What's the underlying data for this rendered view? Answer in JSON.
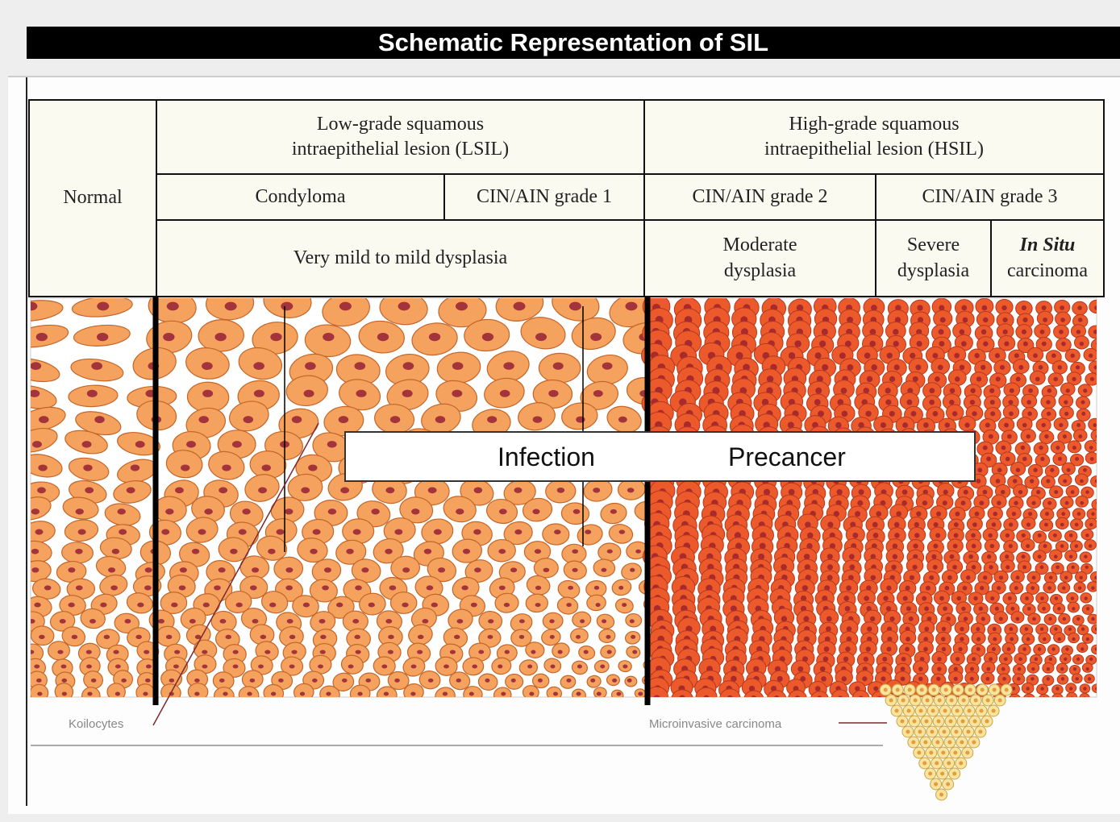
{
  "title": "Schematic Representation of SIL",
  "table": {
    "normal": "Normal",
    "lesions": [
      "Low-grade squamous intraepithelial lesion (LSIL)",
      "High-grade squamous intraepithelial lesion (HSIL)"
    ],
    "grades": [
      "Condyloma",
      "CIN/AIN grade 1",
      "CIN/AIN grade 2",
      "CIN/AIN grade 3"
    ],
    "dysplasia": [
      "Very mild to mild dysplasia",
      "Moderate dysplasia",
      "Severe dysplasia"
    ],
    "in_situ": {
      "emphasis": "In Situ",
      "text": "carcinoma"
    }
  },
  "figure": {
    "koilocytes": "Koilocytes",
    "microinvasive": "Microinvasive carcinoma"
  },
  "overlay": {
    "left": "Infection",
    "right": "Precancer"
  }
}
